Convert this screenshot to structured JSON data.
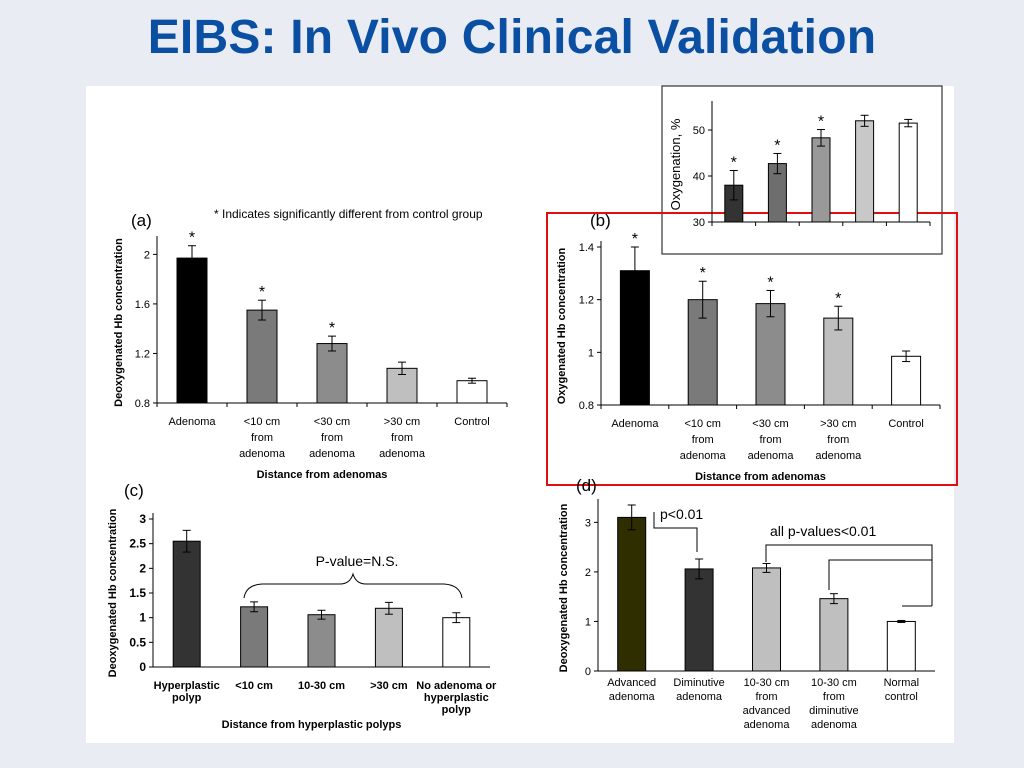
{
  "page": {
    "title": "EIBS: In Vivo Clinical Validation"
  },
  "note": "* Indicates significantly different from control group",
  "chart_data": [
    {
      "id": "a",
      "panel_label": "(a)",
      "type": "bar",
      "categories": [
        [
          "Adenoma"
        ],
        [
          "<10 cm",
          "from",
          "adenoma"
        ],
        [
          "<30 cm",
          "from",
          "adenoma"
        ],
        [
          ">30 cm",
          "from",
          "adenoma"
        ],
        [
          "Control"
        ]
      ],
      "values": [
        1.97,
        1.55,
        1.28,
        1.08,
        0.98
      ],
      "errors": [
        0.1,
        0.08,
        0.06,
        0.05,
        0.02
      ],
      "colors": [
        "#000000",
        "#7a7a7a",
        "#8c8c8c",
        "#bfbfbf",
        "#ffffff"
      ],
      "stars": [
        true,
        true,
        true,
        false,
        false
      ],
      "ylim": [
        0.8,
        2.1
      ],
      "yticks": [
        0.8,
        1.2,
        1.6,
        2
      ],
      "ytick_labels": [
        "0.8",
        "1.2",
        "1.6",
        "2"
      ],
      "xlabel": "Distance from adenomas",
      "ylabel": "Deoxygenated Hb concentration"
    },
    {
      "id": "b",
      "panel_label": "(b)",
      "type": "bar",
      "categories": [
        [
          "Adenoma"
        ],
        [
          "<10 cm",
          "from",
          "adenoma"
        ],
        [
          "<30 cm",
          "from",
          "adenoma"
        ],
        [
          ">30 cm",
          "from",
          "adenoma"
        ],
        [
          "Control"
        ]
      ],
      "values": [
        1.31,
        1.2,
        1.185,
        1.13,
        0.985
      ],
      "errors": [
        0.09,
        0.07,
        0.05,
        0.045,
        0.02
      ],
      "colors": [
        "#000000",
        "#7a7a7a",
        "#8c8c8c",
        "#bfbfbf",
        "#ffffff"
      ],
      "stars": [
        true,
        true,
        true,
        true,
        false
      ],
      "ylim": [
        0.8,
        1.4
      ],
      "yticks": [
        0.8,
        1,
        1.2,
        1.4
      ],
      "ytick_labels": [
        "0.8",
        "1",
        "1.2",
        "1.4"
      ],
      "xlabel": "Distance from adenomas",
      "ylabel": "Oxygenated Hb concentration"
    },
    {
      "id": "inset",
      "panel_label": "",
      "type": "bar",
      "categories": [
        [
          ""
        ],
        [
          ""
        ],
        [
          ""
        ],
        [
          ""
        ],
        [
          ""
        ]
      ],
      "values": [
        38,
        42.7,
        48.3,
        52,
        51.5
      ],
      "errors": [
        3.2,
        2.2,
        1.8,
        1.2,
        0.8
      ],
      "colors": [
        "#333333",
        "#6e6e6e",
        "#999999",
        "#c8c8c8",
        "#ffffff"
      ],
      "stars": [
        true,
        true,
        true,
        false,
        false
      ],
      "ylim": [
        30,
        55
      ],
      "yticks": [
        30,
        40,
        50
      ],
      "ytick_labels": [
        "30",
        "40",
        "50"
      ],
      "xlabel": "",
      "ylabel": "Oxygenation, %"
    },
    {
      "id": "c",
      "panel_label": "(c)",
      "type": "bar",
      "categories": [
        [
          "Hyperplastic",
          "polyp"
        ],
        [
          "<10 cm"
        ],
        [
          "10-30 cm"
        ],
        [
          ">30 cm"
        ],
        [
          "No adenoma or",
          "hyperplastic",
          "polyp"
        ]
      ],
      "values": [
        2.55,
        1.22,
        1.06,
        1.19,
        1.0
      ],
      "errors": [
        0.22,
        0.1,
        0.09,
        0.12,
        0.1
      ],
      "colors": [
        "#333333",
        "#7a7a7a",
        "#8c8c8c",
        "#bfbfbf",
        "#ffffff"
      ],
      "stars": [
        false,
        false,
        false,
        false,
        false
      ],
      "ylim": [
        0,
        3
      ],
      "yticks": [
        0,
        0.5,
        1,
        1.5,
        2,
        2.5,
        3
      ],
      "ytick_labels": [
        "0",
        "0.5",
        "1",
        "1.5",
        "2",
        "2.5",
        "3"
      ],
      "xlabel": "Distance from hyperplastic polyps",
      "ylabel": "Deoxygenated Hb concentration",
      "annotation": "P-value=N.S."
    },
    {
      "id": "d",
      "panel_label": "(d)",
      "type": "bar",
      "categories": [
        [
          "Advanced",
          "adenoma"
        ],
        [
          "Diminutive",
          "adenoma"
        ],
        [
          "10-30 cm",
          "from",
          "advanced",
          "adenoma"
        ],
        [
          "10-30 cm",
          "from",
          "diminutive",
          "adenoma"
        ],
        [
          "Normal",
          "control"
        ]
      ],
      "values": [
        3.1,
        2.06,
        2.08,
        1.46,
        1.0
      ],
      "errors": [
        0.25,
        0.2,
        0.09,
        0.1,
        0.02
      ],
      "colors": [
        "#2e2e00",
        "#333333",
        "#bfbfbf",
        "#bfbfbf",
        "#ffffff"
      ],
      "stars": [
        false,
        false,
        false,
        false,
        false
      ],
      "ylim": [
        0,
        3.35
      ],
      "yticks": [
        0,
        1,
        2,
        3
      ],
      "ytick_labels": [
        "0",
        "1",
        "2",
        "3"
      ],
      "xlabel": "",
      "ylabel": "Deoxygenated Hb concentration",
      "annotation_1": "p<0.01",
      "annotation_2": "all p-values<0.01"
    }
  ]
}
